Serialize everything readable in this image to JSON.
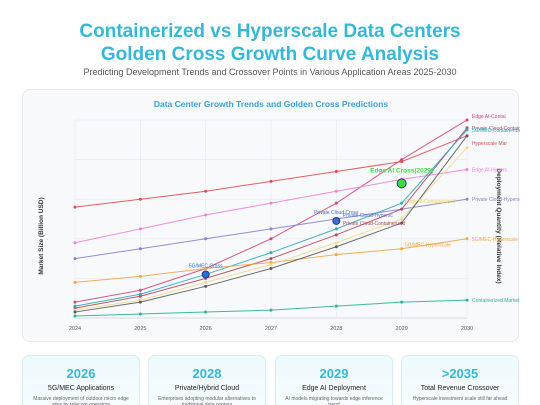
{
  "header": {
    "title_line1": "Containerized vs Hyperscale Data Centers",
    "title_line2": "Golden Cross Growth Curve Analysis",
    "subtitle": "Predicting Development Trends and Crossover Points in Various Application Areas 2025-2030"
  },
  "chart_data": {
    "type": "line",
    "title": "Data Center Growth Trends and Golden Cross Predictions",
    "xlabel": "",
    "ylabel_left": "Market Size (Billion USD)",
    "ylabel_right": "Deployment Quantity (Relative Index)",
    "grid": true,
    "x": [
      "2024",
      "2025",
      "2026",
      "2027",
      "2028",
      "2029",
      "2030"
    ],
    "ylim": [
      0,
      100
    ],
    "series": [
      {
        "name": "Edge AI-Contai",
        "color": "#d3447f",
        "values": [
          8,
          14,
          25,
          40,
          58,
          80,
          100
        ]
      },
      {
        "name": "Hyperscale Mar",
        "color": "#e04c4c",
        "values": [
          56,
          60,
          64,
          69,
          74,
          79,
          92
        ]
      },
      {
        "name": "Edge AI-Hypers",
        "color": "#ef7fd8",
        "values": [
          38,
          45,
          52,
          58,
          64,
          70,
          75
        ]
      },
      {
        "name": "Private Cloud-Hypersc",
        "color": "#8a7ed8",
        "values": [
          30,
          35,
          40,
          45,
          50,
          55,
          60
        ]
      },
      {
        "name": "Private Cloud-Containerized",
        "color": "#b5475a",
        "values": [
          5,
          11,
          20,
          30,
          42,
          55,
          96
        ]
      },
      {
        "name": "5G/MEC-Containerized",
        "color": "#2aa8c0",
        "values": [
          6,
          12,
          22,
          33,
          45,
          58,
          95
        ]
      },
      {
        "name": "5G/MEC-Hyperscale",
        "color": "#f0a446",
        "values": [
          18,
          21,
          25,
          28,
          32,
          35,
          40
        ]
      },
      {
        "name": "Containerized Market",
        "color": "#25b597",
        "values": [
          1,
          2,
          3,
          4,
          6,
          8,
          9
        ]
      },
      {
        "name": "",
        "color": "#f2d98a",
        "values": [
          4,
          9,
          18,
          27,
          38,
          50,
          86
        ]
      },
      {
        "name": "",
        "color": "#5a5a5a",
        "values": [
          3,
          8,
          16,
          25,
          36,
          48,
          92
        ]
      }
    ],
    "crossings": [
      {
        "label": "5G/MEC Cross",
        "x": 2,
        "y": 22,
        "color": "#2d6fd9"
      },
      {
        "label": "Private Cloud Cross",
        "x": 4,
        "y": 49,
        "color": "#3f6fcf"
      },
      {
        "label": "Edge AI Cross(2029)",
        "x": 5,
        "y": 68,
        "color": "#3ddc3d"
      }
    ],
    "annotations": [
      {
        "text": "Private Cloud-Hypersc",
        "x": 4.1,
        "y": 51,
        "color": "#5f73d6"
      },
      {
        "text": "Private Cloud-Containerized",
        "x": 4.1,
        "y": 47,
        "color": "#b5475a"
      },
      {
        "text": "Edge AI-Containerized",
        "x": 5.05,
        "y": 58,
        "color": "#f2cf5e"
      },
      {
        "text": "5G/MEC-Hyperscale",
        "x": 5.05,
        "y": 36,
        "color": "#f0a446"
      }
    ]
  },
  "cards": [
    {
      "year": "2026",
      "title": "5G/MEC Applications",
      "desc": "Massive deployment of outdoor micro edge sites by telecom operators"
    },
    {
      "year": "2028",
      "title": "Private/Hybrid Cloud",
      "desc": "Enterprises adopting modular alternatives to traditional data centers"
    },
    {
      "year": "2029",
      "title": "Edge AI Deployment",
      "desc": "AI models migrating towards edge inference trend"
    },
    {
      "year": ">2035",
      "title": "Total Revenue Crossover",
      "desc": "Hyperscale investment scale still far ahead"
    }
  ]
}
